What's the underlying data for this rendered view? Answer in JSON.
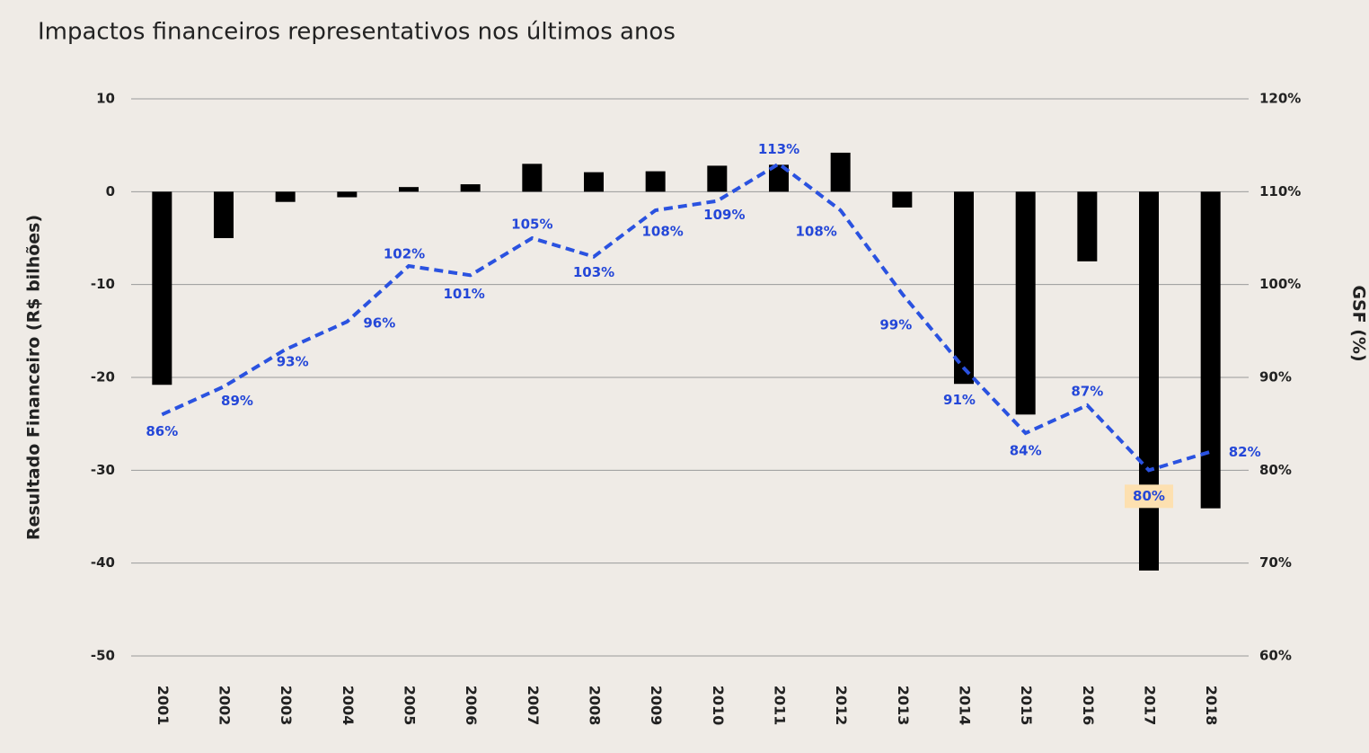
{
  "chart_data": {
    "type": "bar",
    "title": "Impactos financeiros representativos nos últimos anos",
    "y_label": "Resultado Financeiro (R$ bilhões)",
    "y2_label": "GSF (%)",
    "categories": [
      "2001",
      "2002",
      "2003",
      "2004",
      "2005",
      "2006",
      "2007",
      "2008",
      "2009",
      "2010",
      "2011",
      "2012",
      "2013",
      "2014",
      "2015",
      "2016",
      "2017",
      "2018"
    ],
    "series": [
      {
        "name": "Resultado Financeiro",
        "type": "bar",
        "color": "#000000",
        "values": [
          -20.8,
          -5.0,
          -1.1,
          -0.6,
          0.5,
          0.8,
          3.0,
          2.1,
          2.2,
          2.8,
          2.9,
          4.2,
          -1.7,
          -20.7,
          -24.0,
          -7.5,
          -40.8,
          -34.1
        ]
      },
      {
        "name": "GSF",
        "type": "line",
        "axis": "y2",
        "color": "#2a52e0",
        "values": [
          86,
          89,
          93,
          96,
          102,
          101,
          105,
          103,
          108,
          109,
          113,
          108,
          99,
          91,
          84,
          87,
          80,
          82
        ],
        "value_labels": [
          "86%",
          "89%",
          "93%",
          "96%",
          "102%",
          "101%",
          "105%",
          "103%",
          "108%",
          "109%",
          "113%",
          "108%",
          "99%",
          "91%",
          "84%",
          "87%",
          "80%",
          "82%"
        ]
      }
    ],
    "ylim": [
      -50,
      10
    ],
    "yticks": [
      -50,
      -40,
      -30,
      -20,
      -10,
      0,
      10
    ],
    "y2lim": [
      60,
      120
    ],
    "y2ticks": [
      {
        "value": 60,
        "label": "60%"
      },
      {
        "value": 70,
        "label": "70%"
      },
      {
        "value": 80,
        "label": "80%"
      },
      {
        "value": 90,
        "label": "90%"
      },
      {
        "value": 100,
        "label": "100%"
      },
      {
        "value": 110,
        "label": "110%"
      },
      {
        "value": 120,
        "label": "120%"
      }
    ],
    "grid": true
  }
}
